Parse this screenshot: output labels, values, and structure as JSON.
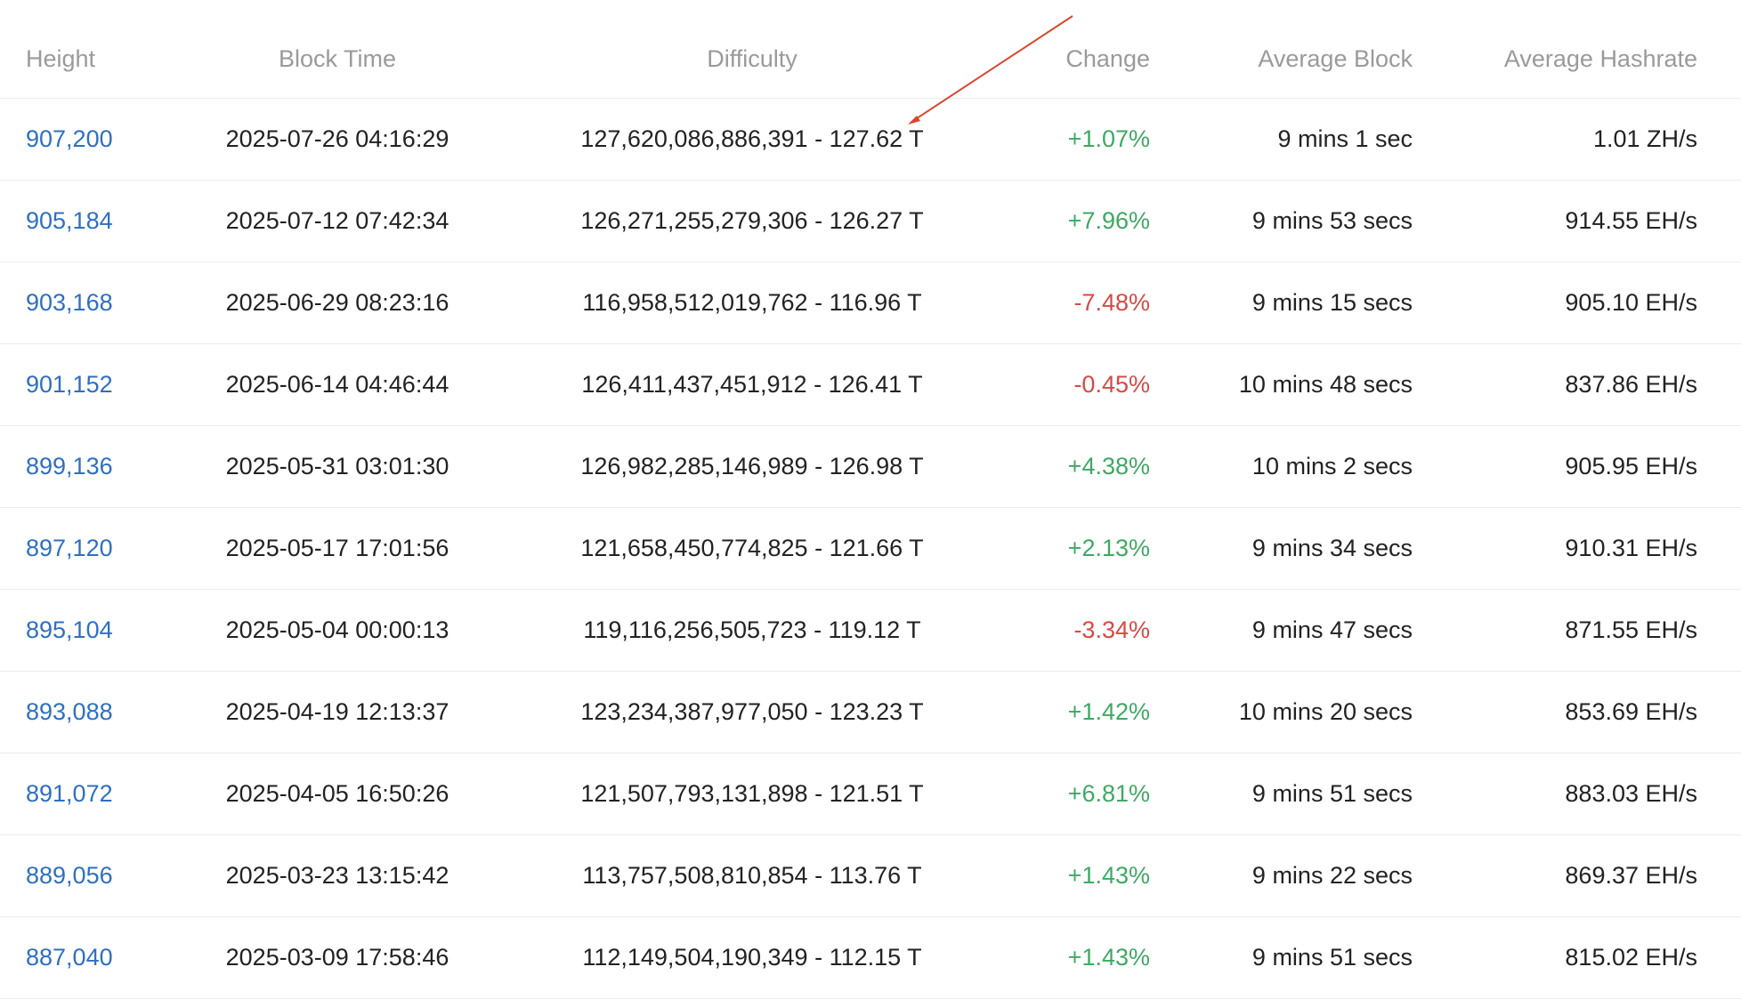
{
  "columns": {
    "height": "Height",
    "block_time": "Block Time",
    "difficulty": "Difficulty",
    "change": "Change",
    "average_block": "Average Block",
    "average_hashrate": "Average Hashrate"
  },
  "rows": [
    {
      "height": "907,200",
      "block_time": "2025-07-26 04:16:29",
      "difficulty": "127,620,086,886,391 - 127.62 T",
      "change": "+1.07%",
      "average_block": "9 mins 1 sec",
      "average_hashrate": "1.01 ZH/s"
    },
    {
      "height": "905,184",
      "block_time": "2025-07-12 07:42:34",
      "difficulty": "126,271,255,279,306 - 126.27 T",
      "change": "+7.96%",
      "average_block": "9 mins 53 secs",
      "average_hashrate": "914.55 EH/s"
    },
    {
      "height": "903,168",
      "block_time": "2025-06-29 08:23:16",
      "difficulty": "116,958,512,019,762 - 116.96 T",
      "change": "-7.48%",
      "average_block": "9 mins 15 secs",
      "average_hashrate": "905.10 EH/s"
    },
    {
      "height": "901,152",
      "block_time": "2025-06-14 04:46:44",
      "difficulty": "126,411,437,451,912 - 126.41 T",
      "change": "-0.45%",
      "average_block": "10 mins 48 secs",
      "average_hashrate": "837.86 EH/s"
    },
    {
      "height": "899,136",
      "block_time": "2025-05-31 03:01:30",
      "difficulty": "126,982,285,146,989 - 126.98 T",
      "change": "+4.38%",
      "average_block": "10 mins 2 secs",
      "average_hashrate": "905.95 EH/s"
    },
    {
      "height": "897,120",
      "block_time": "2025-05-17 17:01:56",
      "difficulty": "121,658,450,774,825 - 121.66 T",
      "change": "+2.13%",
      "average_block": "9 mins 34 secs",
      "average_hashrate": "910.31 EH/s"
    },
    {
      "height": "895,104",
      "block_time": "2025-05-04 00:00:13",
      "difficulty": "119,116,256,505,723 - 119.12 T",
      "change": "-3.34%",
      "average_block": "9 mins 47 secs",
      "average_hashrate": "871.55 EH/s"
    },
    {
      "height": "893,088",
      "block_time": "2025-04-19 12:13:37",
      "difficulty": "123,234,387,977,050 - 123.23 T",
      "change": "+1.42%",
      "average_block": "10 mins 20 secs",
      "average_hashrate": "853.69 EH/s"
    },
    {
      "height": "891,072",
      "block_time": "2025-04-05 16:50:26",
      "difficulty": "121,507,793,131,898 - 121.51 T",
      "change": "+6.81%",
      "average_block": "9 mins 51 secs",
      "average_hashrate": "883.03 EH/s"
    },
    {
      "height": "889,056",
      "block_time": "2025-03-23 13:15:42",
      "difficulty": "113,757,508,810,854 - 113.76 T",
      "change": "+1.43%",
      "average_block": "9 mins 22 secs",
      "average_hashrate": "869.37 EH/s"
    },
    {
      "height": "887,040",
      "block_time": "2025-03-09 17:58:46",
      "difficulty": "112,149,504,190,349 - 112.15 T",
      "change": "+1.43%",
      "average_block": "9 mins 51 secs",
      "average_hashrate": "815.02 EH/s"
    }
  ],
  "colors": {
    "link": "#2f6fc2",
    "positive": "#3fa864",
    "negative": "#d64a45",
    "header_text": "#9a9a9a",
    "annotation_arrow": "#d9472f"
  }
}
